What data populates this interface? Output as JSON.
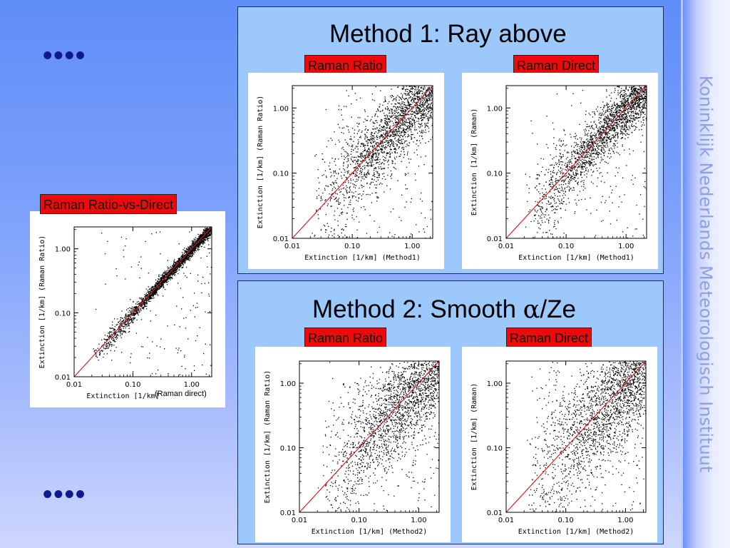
{
  "slide": {
    "dots_top": "••••",
    "dots_bottom": "••••",
    "sidebar_text": "Koninklijk Nederlands Meteorologisch Instituut"
  },
  "panel1": {
    "title": "Method 1: Ray above",
    "badge_left": "Raman Ratio",
    "badge_right": "Raman Direct"
  },
  "panel2": {
    "title_prefix": "Method 2: Smooth ",
    "title_symbol": "α",
    "title_suffix": "/Ze",
    "badge_left": "Raman Ratio",
    "badge_right": "Raman Direct"
  },
  "left_plot": {
    "badge": "Raman Ratio-vs-Direct",
    "xlabel_suffix": "(Raman direct)"
  },
  "chart_data": [
    {
      "id": "left",
      "type": "scatter",
      "xlabel": "Extinction [1/km]",
      "ylabel": "Extinction [1/km] (Raman Ratio)",
      "xscale": "log",
      "yscale": "log",
      "xlim": [
        0.01,
        2.2
      ],
      "ylim": [
        0.01,
        2.2
      ],
      "xticks": [
        "0.01",
        "0.10",
        "1.00"
      ],
      "yticks": [
        "0.01",
        "0.10",
        "1.00"
      ],
      "reference_line": "1:1 (red)",
      "spread": 0.05
    },
    {
      "id": "m1-ratio",
      "type": "scatter",
      "xlabel": "Extinction [1/km] (Method1)",
      "ylabel": "Extinction [1/km] (Raman Ratio)",
      "xscale": "log",
      "yscale": "log",
      "xlim": [
        0.01,
        2.2
      ],
      "ylim": [
        0.01,
        2.2
      ],
      "xticks": [
        "0.01",
        "0.10",
        "1.00"
      ],
      "yticks": [
        "0.01",
        "0.10",
        "1.00"
      ],
      "reference_line": "1:1 (red)",
      "spread": 0.3
    },
    {
      "id": "m1-direct",
      "type": "scatter",
      "xlabel": "Extinction [1/km] (Method1)",
      "ylabel": "Extinction [1/km] (Raman)",
      "xscale": "log",
      "yscale": "log",
      "xlim": [
        0.01,
        2.2
      ],
      "ylim": [
        0.01,
        2.2
      ],
      "xticks": [
        "0.01",
        "0.10",
        "1.00"
      ],
      "yticks": [
        "0.01",
        "0.10",
        "1.00"
      ],
      "reference_line": "1:1 (red)",
      "spread": 0.22
    },
    {
      "id": "m2-ratio",
      "type": "scatter",
      "xlabel": "Extinction [1/km] (Method2)",
      "ylabel": "Extinction [1/km] (Raman Ratio)",
      "xscale": "log",
      "yscale": "log",
      "xlim": [
        0.01,
        2.2
      ],
      "ylim": [
        0.01,
        2.2
      ],
      "xticks": [
        "0.01",
        "0.10",
        "1.00"
      ],
      "yticks": [
        "0.01",
        "0.10",
        "1.00"
      ],
      "reference_line": "1:1 (red)",
      "spread": 0.4
    },
    {
      "id": "m2-direct",
      "type": "scatter",
      "xlabel": "Extinction [1/km] (Method2)",
      "ylabel": "Extinction [1/km] (Raman)",
      "xscale": "log",
      "yscale": "log",
      "xlim": [
        0.01,
        2.2
      ],
      "ylim": [
        0.01,
        2.2
      ],
      "xticks": [
        "0.01",
        "0.10",
        "1.00"
      ],
      "yticks": [
        "0.01",
        "0.10",
        "1.00"
      ],
      "reference_line": "1:1 (red)",
      "spread": 0.45
    }
  ]
}
